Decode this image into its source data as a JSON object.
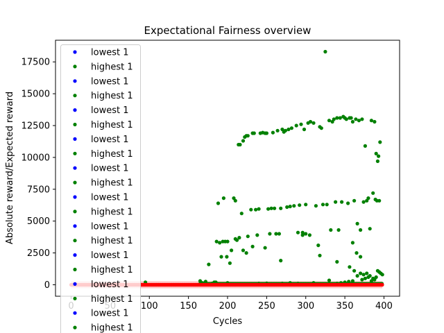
{
  "chart_data": {
    "type": "scatter",
    "title": "Expectational Fairness overview",
    "xlabel": "Cycles",
    "ylabel": "Absolute reward/Expected reward",
    "xlim": [
      -20,
      420
    ],
    "ylim": [
      -900,
      19200
    ],
    "xticks": [
      0,
      50,
      100,
      150,
      200,
      250,
      300,
      350,
      400
    ],
    "yticks": [
      0,
      2500,
      5000,
      7500,
      10000,
      12500,
      15000,
      17500
    ],
    "xtick_labels": [
      "0",
      "50",
      "100",
      "150",
      "200",
      "250",
      "300",
      "350",
      "400"
    ],
    "ytick_labels": [
      "0",
      "2500",
      "5000",
      "7500",
      "10000",
      "12500",
      "15000",
      "17500"
    ],
    "grid": false,
    "legend_position": "upper-left",
    "legend": [
      "lowest 1",
      "highest 1",
      "lowest 1",
      "highest 1",
      "lowest 1",
      "highest 1",
      "lowest 1",
      "highest 1",
      "lowest 1",
      "highest 1",
      "lowest 1",
      "highest 1",
      "lowest 1",
      "highest 1",
      "lowest 1",
      "highest 1",
      "lowest 1",
      "highest 1",
      "lowest 1",
      "highest 1"
    ],
    "colors": {
      "lowest": "#0000ff",
      "highest": "#008000",
      "baseline": "#ff0000",
      "band": "#ffc0c0"
    },
    "series": [
      {
        "name": "highest 1",
        "color": "#008000",
        "points": [
          [
            95,
            200
          ],
          [
            165,
            300
          ],
          [
            168,
            150
          ],
          [
            172,
            250
          ],
          [
            176,
            1600
          ],
          [
            180,
            100
          ],
          [
            183,
            200
          ],
          [
            186,
            3400
          ],
          [
            188,
            6400
          ],
          [
            190,
            3300
          ],
          [
            192,
            2200
          ],
          [
            194,
            3400
          ],
          [
            195,
            6800
          ],
          [
            197,
            3400
          ],
          [
            199,
            2200
          ],
          [
            200,
            3400
          ],
          [
            203,
            1700
          ],
          [
            205,
            2700
          ],
          [
            208,
            6800
          ],
          [
            210,
            6600
          ],
          [
            212,
            3500
          ],
          [
            214,
            11000
          ],
          [
            216,
            11000
          ],
          [
            218,
            5600
          ],
          [
            220,
            11300
          ],
          [
            222,
            11600
          ],
          [
            224,
            11700
          ],
          [
            226,
            11700
          ],
          [
            220,
            2700
          ],
          [
            224,
            2500
          ],
          [
            226,
            3800
          ],
          [
            230,
            5900
          ],
          [
            232,
            11900
          ],
          [
            234,
            11900
          ],
          [
            236,
            5900
          ],
          [
            238,
            3900
          ],
          [
            240,
            5950
          ],
          [
            242,
            11900
          ],
          [
            245,
            11950
          ],
          [
            248,
            11900
          ],
          [
            250,
            11900
          ],
          [
            252,
            5950
          ],
          [
            254,
            4000
          ],
          [
            256,
            6000
          ],
          [
            258,
            11950
          ],
          [
            260,
            6000
          ],
          [
            262,
            4000
          ],
          [
            264,
            12100
          ],
          [
            266,
            4000
          ],
          [
            268,
            6000
          ],
          [
            270,
            12200
          ],
          [
            272,
            12000
          ],
          [
            274,
            12100
          ],
          [
            276,
            6100
          ],
          [
            278,
            12200
          ],
          [
            280,
            6150
          ],
          [
            282,
            12300
          ],
          [
            285,
            6200
          ],
          [
            288,
            12500
          ],
          [
            290,
            4100
          ],
          [
            292,
            6250
          ],
          [
            294,
            12600
          ],
          [
            296,
            3900
          ],
          [
            298,
            12200
          ],
          [
            300,
            6300
          ],
          [
            303,
            12700
          ],
          [
            306,
            12800
          ],
          [
            310,
            12700
          ],
          [
            313,
            6200
          ],
          [
            316,
            3100
          ],
          [
            318,
            12400
          ],
          [
            320,
            12300
          ],
          [
            322,
            6300
          ],
          [
            325,
            18300
          ],
          [
            327,
            6300
          ],
          [
            330,
            12900
          ],
          [
            332,
            4300
          ],
          [
            334,
            12800
          ],
          [
            336,
            13000
          ],
          [
            338,
            6500
          ],
          [
            340,
            13100
          ],
          [
            342,
            4300
          ],
          [
            344,
            13100
          ],
          [
            346,
            6500
          ],
          [
            348,
            13200
          ],
          [
            350,
            13100
          ],
          [
            352,
            13000
          ],
          [
            354,
            6400
          ],
          [
            356,
            13100
          ],
          [
            358,
            13100
          ],
          [
            360,
            12800
          ],
          [
            362,
            6600
          ],
          [
            364,
            13000
          ],
          [
            366,
            4800
          ],
          [
            368,
            12900
          ],
          [
            370,
            4300
          ],
          [
            372,
            13000
          ],
          [
            374,
            6500
          ],
          [
            376,
            10900
          ],
          [
            378,
            6600
          ],
          [
            380,
            6800
          ],
          [
            382,
            4400
          ],
          [
            384,
            12900
          ],
          [
            386,
            7200
          ],
          [
            388,
            12800
          ],
          [
            389,
            6700
          ],
          [
            390,
            10300
          ],
          [
            391,
            6600
          ],
          [
            392,
            9700
          ],
          [
            393,
            10100
          ],
          [
            394,
            6600
          ],
          [
            395,
            11200
          ],
          [
            360,
            3300
          ],
          [
            365,
            2500
          ],
          [
            370,
            2200
          ],
          [
            300,
            4000
          ],
          [
            296,
            4100
          ],
          [
            210,
            3600
          ],
          [
            215,
            3700
          ],
          [
            232,
            3000
          ],
          [
            248,
            2900
          ],
          [
            268,
            1900
          ],
          [
            305,
            3900
          ],
          [
            318,
            2300
          ],
          [
            340,
            1800
          ],
          [
            356,
            1400
          ],
          [
            362,
            1100
          ],
          [
            366,
            700
          ],
          [
            370,
            900
          ],
          [
            372,
            400
          ],
          [
            374,
            800
          ],
          [
            376,
            500
          ],
          [
            378,
            900
          ],
          [
            380,
            600
          ],
          [
            382,
            700
          ],
          [
            384,
            300
          ],
          [
            386,
            500
          ],
          [
            388,
            400
          ],
          [
            390,
            600
          ],
          [
            392,
            1100
          ],
          [
            394,
            1000
          ],
          [
            396,
            900
          ],
          [
            398,
            800
          ],
          [
            360,
            300
          ],
          [
            355,
            250
          ],
          [
            350,
            200
          ],
          [
            345,
            150
          ],
          [
            340,
            100
          ],
          [
            330,
            350
          ],
          [
            310,
            150
          ],
          [
            290,
            100
          ],
          [
            280,
            150
          ],
          [
            270,
            100
          ],
          [
            250,
            120
          ],
          [
            240,
            100
          ],
          [
            200,
            150
          ],
          [
            185,
            200
          ]
        ]
      }
    ],
    "baseline": {
      "name": "lowest 1",
      "x_range": [
        0,
        398
      ],
      "value": 0
    }
  }
}
